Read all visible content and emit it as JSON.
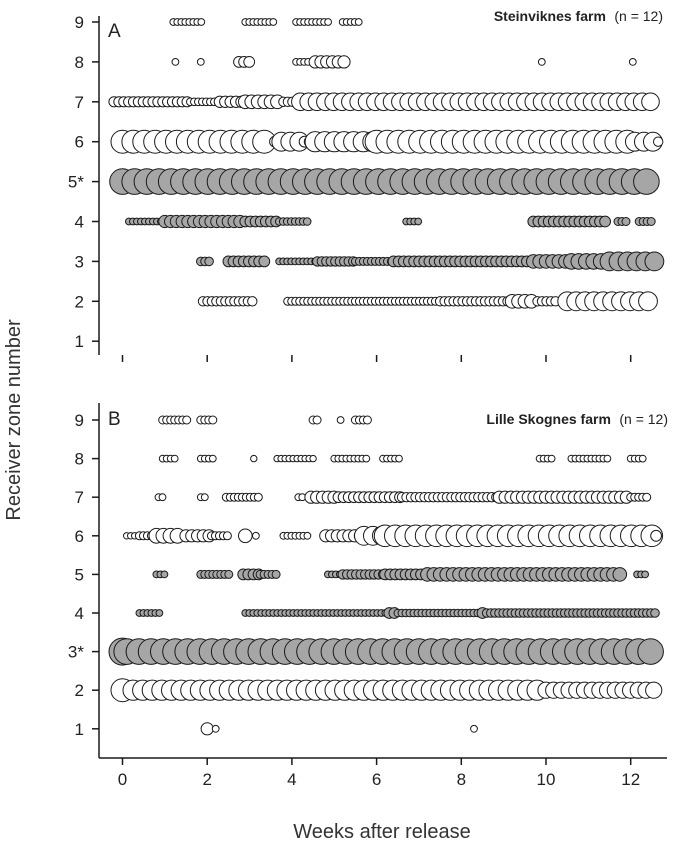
{
  "figure": {
    "ylabel": "Receiver zone number",
    "xlabel": "Weeks after release"
  },
  "chart_data": [
    {
      "type": "scatter",
      "panel": "A",
      "title_bold": "Steinviknes farm",
      "title_suffix": "(n = 12)",
      "xlim": [
        -0.5,
        12.9
      ],
      "ylim": [
        0.5,
        9.3
      ],
      "xticks": [
        0,
        2,
        4,
        6,
        8,
        10,
        12
      ],
      "xtick_labels": [
        "",
        "",
        "",
        "",
        "",
        "",
        ""
      ],
      "yticks": [
        1,
        2,
        3,
        4,
        5,
        6,
        7,
        8,
        9
      ],
      "ytick_labels": [
        "1",
        "2",
        "3",
        "4",
        "5*",
        "6",
        "7",
        "8",
        "9"
      ],
      "marker_size_note": "marker size proportional to relative number of detections",
      "colors": {
        "white_fill": "#ffffff",
        "grey_fill": "#a6a6a6",
        "outline": "#1a1a1a"
      },
      "rows": [
        {
          "zone": 9,
          "fill": "white",
          "segments": [
            [
              1.2,
              1.95,
              0.25
            ],
            [
              2.9,
              3.6,
              0.25
            ],
            [
              4.1,
              4.9,
              0.25
            ],
            [
              5.2,
              5.6,
              0.25
            ]
          ]
        },
        {
          "zone": 8,
          "fill": "white",
          "segments": [
            [
              1.25,
              1.25,
              0.25
            ],
            [
              1.85,
              1.85,
              0.25
            ],
            [
              2.75,
              3.1,
              0.4
            ],
            [
              4.1,
              4.45,
              0.25
            ],
            [
              4.55,
              5.3,
              0.45
            ],
            [
              9.9,
              9.9,
              0.25
            ],
            [
              12.05,
              12.05,
              0.25
            ]
          ]
        },
        {
          "zone": 7,
          "fill": "white",
          "segments": [
            [
              -0.2,
              1.6,
              0.38
            ],
            [
              1.6,
              2.3,
              0.28
            ],
            [
              2.3,
              2.9,
              0.42
            ],
            [
              2.9,
              3.8,
              0.5
            ],
            [
              3.8,
              4.2,
              0.35
            ],
            [
              4.2,
              12.6,
              0.65
            ]
          ]
        },
        {
          "zone": 6,
          "fill": "white",
          "segments": [
            [
              0.0,
              3.6,
              0.85
            ],
            [
              3.6,
              3.75,
              0.4
            ],
            [
              3.75,
              4.3,
              0.7
            ],
            [
              4.3,
              4.55,
              0.4
            ],
            [
              4.55,
              6.0,
              0.75
            ],
            [
              6.0,
              12.1,
              0.85
            ],
            [
              12.1,
              12.55,
              0.7
            ],
            [
              12.65,
              12.65,
              0.35
            ]
          ]
        },
        {
          "zone": 5,
          "fill": "grey",
          "segments": [
            [
              0.0,
              12.6,
              0.95
            ]
          ]
        },
        {
          "zone": 4,
          "fill": "grey",
          "segments": [
            [
              0.15,
              1.0,
              0.25
            ],
            [
              1.0,
              2.9,
              0.45
            ],
            [
              2.9,
              3.7,
              0.4
            ],
            [
              3.7,
              4.4,
              0.28
            ],
            [
              6.7,
              7.0,
              0.25
            ],
            [
              9.7,
              11.5,
              0.4
            ],
            [
              11.7,
              11.9,
              0.3
            ],
            [
              12.2,
              12.5,
              0.3
            ]
          ]
        },
        {
          "zone": 3,
          "fill": "grey",
          "segments": [
            [
              1.85,
              2.1,
              0.32
            ],
            [
              2.5,
              3.4,
              0.4
            ],
            [
              3.7,
              4.6,
              0.25
            ],
            [
              4.6,
              5.5,
              0.35
            ],
            [
              5.5,
              6.4,
              0.3
            ],
            [
              6.4,
              9.7,
              0.4
            ],
            [
              9.7,
              10.6,
              0.5
            ],
            [
              10.6,
              11.5,
              0.58
            ],
            [
              11.5,
              12.6,
              0.7
            ]
          ]
        },
        {
          "zone": 2,
          "fill": "white",
          "segments": [
            [
              1.9,
              3.1,
              0.35
            ],
            [
              3.9,
              5.5,
              0.3
            ],
            [
              5.5,
              7.5,
              0.3
            ],
            [
              7.5,
              9.2,
              0.35
            ],
            [
              9.2,
              9.7,
              0.5
            ],
            [
              9.8,
              10.3,
              0.35
            ],
            [
              10.5,
              12.6,
              0.7
            ]
          ]
        },
        {
          "zone": 1,
          "fill": "white",
          "segments": []
        }
      ]
    },
    {
      "type": "scatter",
      "panel": "B",
      "title_bold": "Lille Skognes farm",
      "title_suffix": "(n = 12)",
      "xlim": [
        -0.5,
        12.9
      ],
      "ylim": [
        0.2,
        9.3
      ],
      "xticks": [
        0,
        2,
        4,
        6,
        8,
        10,
        12
      ],
      "xtick_labels": [
        "0",
        "2",
        "4",
        "6",
        "8",
        "10",
        "12"
      ],
      "yticks": [
        1,
        2,
        3,
        4,
        5,
        6,
        7,
        8,
        9
      ],
      "ytick_labels": [
        "1",
        "2",
        "3*",
        "4",
        "5",
        "6",
        "7",
        "8",
        "9"
      ],
      "marker_size_note": "marker size proportional to relative number of detections",
      "colors": {
        "white_fill": "#ffffff",
        "grey_fill": "#a6a6a6",
        "outline": "#1a1a1a"
      },
      "rows": [
        {
          "zone": 9,
          "fill": "white",
          "segments": [
            [
              0.95,
              1.55,
              0.3
            ],
            [
              1.85,
              2.15,
              0.3
            ],
            [
              4.5,
              4.65,
              0.3
            ],
            [
              5.15,
              5.15,
              0.25
            ],
            [
              5.5,
              5.85,
              0.3
            ]
          ]
        },
        {
          "zone": 8,
          "fill": "white",
          "segments": [
            [
              0.95,
              1.3,
              0.25
            ],
            [
              1.85,
              2.15,
              0.25
            ],
            [
              3.1,
              3.1,
              0.22
            ],
            [
              3.65,
              4.55,
              0.22
            ],
            [
              5.0,
              5.8,
              0.25
            ],
            [
              6.15,
              6.6,
              0.25
            ],
            [
              9.85,
              10.15,
              0.25
            ],
            [
              10.6,
              11.45,
              0.25
            ],
            [
              12.0,
              12.35,
              0.25
            ]
          ]
        },
        {
          "zone": 7,
          "fill": "white",
          "segments": [
            [
              0.85,
              0.95,
              0.25
            ],
            [
              1.85,
              1.95,
              0.25
            ],
            [
              2.45,
              3.25,
              0.3
            ],
            [
              4.15,
              4.3,
              0.25
            ],
            [
              4.45,
              5.1,
              0.45
            ],
            [
              5.1,
              6.6,
              0.4
            ],
            [
              6.6,
              8.9,
              0.35
            ],
            [
              8.9,
              11.9,
              0.45
            ],
            [
              12.0,
              12.4,
              0.3
            ]
          ]
        },
        {
          "zone": 6,
          "fill": "white",
          "segments": [
            [
              0.1,
              0.4,
              0.22
            ],
            [
              0.4,
              0.8,
              0.3
            ],
            [
              0.8,
              1.4,
              0.55
            ],
            [
              1.5,
              2.1,
              0.45
            ],
            [
              2.1,
              2.5,
              0.3
            ],
            [
              2.9,
              3.0,
              0.5
            ],
            [
              3.15,
              3.15,
              0.25
            ],
            [
              3.8,
              4.4,
              0.25
            ],
            [
              4.8,
              5.7,
              0.45
            ],
            [
              5.7,
              6.2,
              0.7
            ],
            [
              6.2,
              12.5,
              0.8
            ],
            [
              12.6,
              12.6,
              0.4
            ]
          ]
        },
        {
          "zone": 5,
          "fill": "grey",
          "segments": [
            [
              0.8,
              1.05,
              0.25
            ],
            [
              1.85,
              2.55,
              0.3
            ],
            [
              2.85,
              3.25,
              0.4
            ],
            [
              3.25,
              3.7,
              0.3
            ],
            [
              4.85,
              5.2,
              0.25
            ],
            [
              5.2,
              6.2,
              0.35
            ],
            [
              6.2,
              7.2,
              0.4
            ],
            [
              7.2,
              11.8,
              0.5
            ],
            [
              12.15,
              12.35,
              0.25
            ]
          ]
        },
        {
          "zone": 4,
          "fill": "grey",
          "segments": [
            [
              0.4,
              0.95,
              0.25
            ],
            [
              2.9,
              6.3,
              0.25
            ],
            [
              6.3,
              6.5,
              0.4
            ],
            [
              6.5,
              8.5,
              0.28
            ],
            [
              8.5,
              8.6,
              0.4
            ],
            [
              8.6,
              12.6,
              0.32
            ]
          ]
        },
        {
          "zone": 3,
          "fill": "grey",
          "segments": [
            [
              0.0,
              0.0,
              1.0
            ],
            [
              0.1,
              12.6,
              0.95
            ]
          ]
        },
        {
          "zone": 2,
          "fill": "white",
          "segments": [
            [
              0.0,
              0.0,
              0.85
            ],
            [
              0.25,
              10.0,
              0.75
            ],
            [
              10.0,
              12.6,
              0.6
            ]
          ]
        },
        {
          "zone": 1,
          "fill": "white",
          "segments": [
            [
              2.0,
              2.0,
              0.45
            ],
            [
              2.2,
              2.2,
              0.25
            ],
            [
              8.3,
              8.3,
              0.25
            ]
          ]
        }
      ]
    }
  ]
}
